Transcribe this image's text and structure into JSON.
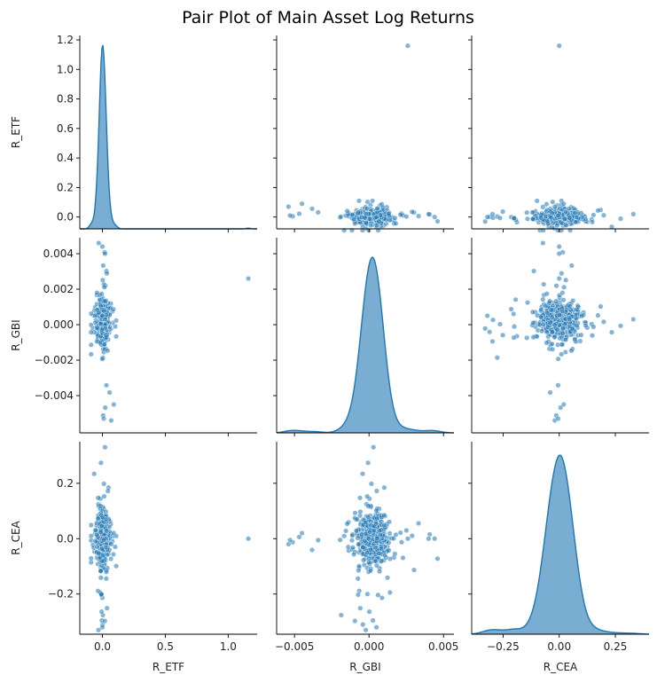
{
  "chart_data": {
    "type": "scatter",
    "title": "Pair Plot of Main Asset Log Returns",
    "variables": [
      "R_ETF",
      "R_GBI",
      "R_CEA"
    ],
    "color": "#1f77b4",
    "grid": false,
    "axes": {
      "R_ETF": {
        "range": [
          -0.18,
          1.23
        ],
        "ticks": [
          0,
          0.5,
          1
        ],
        "tick_labels": [
          "0.0",
          "0.5",
          "1.0"
        ]
      },
      "R_GBI": {
        "range": [
          -0.0062,
          0.0057
        ],
        "ticks": [
          -0.005,
          0,
          0.005
        ],
        "tick_labels": [
          "−0.005",
          "0.000",
          "0.005"
        ]
      },
      "R_CEA": {
        "range": [
          -0.39,
          0.4
        ],
        "ticks": [
          -0.25,
          0,
          0.25
        ],
        "tick_labels": [
          "−0.25",
          "0.00",
          "0.25"
        ]
      }
    },
    "row_ticks": {
      "R_ETF": {
        "range": [
          -0.08,
          1.23
        ],
        "ticks": [
          0,
          0.2,
          0.4,
          0.6,
          0.8,
          1.0,
          1.2
        ],
        "tick_labels": [
          "0.0",
          "0.2",
          "0.4",
          "0.6",
          "0.8",
          "1.0",
          "1.2"
        ]
      },
      "R_GBI": {
        "range": [
          -0.0061,
          0.0049
        ],
        "ticks": [
          -0.004,
          -0.002,
          0,
          0.002,
          0.004
        ],
        "tick_labels": [
          "−0.004",
          "−0.002",
          "0.000",
          "0.002",
          "0.004"
        ]
      },
      "R_CEA": {
        "range": [
          -0.345,
          0.35
        ],
        "ticks": [
          -0.2,
          0,
          0.2
        ],
        "tick_labels": [
          "−0.2",
          "0.0",
          "0.2"
        ]
      }
    },
    "diagonal": {
      "R_ETF": {
        "type": "kde",
        "peak_x": 0.0,
        "peak_height_frac": 0.95,
        "bandwidth": 0.017
      },
      "R_GBI": {
        "type": "kde",
        "peak_x": 0.0002,
        "peak_height_frac": 0.9,
        "bandwidth": 0.00045
      },
      "R_CEA": {
        "type": "kde",
        "peak_x": 0.0,
        "peak_height_frac": 0.93,
        "bandwidth": 0.033
      }
    },
    "sample_points": [
      {
        "R_ETF": 1.16,
        "R_GBI": 0.0026,
        "R_CEA": 0.0
      },
      {
        "R_ETF": 0.07,
        "R_GBI": -0.0054,
        "R_CEA": -0.02
      },
      {
        "R_ETF": 0.09,
        "R_GBI": -0.0045,
        "R_CEA": 0.02
      },
      {
        "R_ETF": 0.0,
        "R_GBI": 0.0044,
        "R_CEA": 0.0
      },
      {
        "R_ETF": 0.02,
        "R_GBI": 0.004,
        "R_CEA": 0.0
      },
      {
        "R_ETF": 0.01,
        "R_GBI": -0.0053,
        "R_CEA": -0.005
      },
      {
        "R_ETF": 0.02,
        "R_GBI": 0.0003,
        "R_CEA": 0.33
      },
      {
        "R_ETF": 0.0,
        "R_GBI": 0.0005,
        "R_CEA": -0.32
      }
    ]
  }
}
